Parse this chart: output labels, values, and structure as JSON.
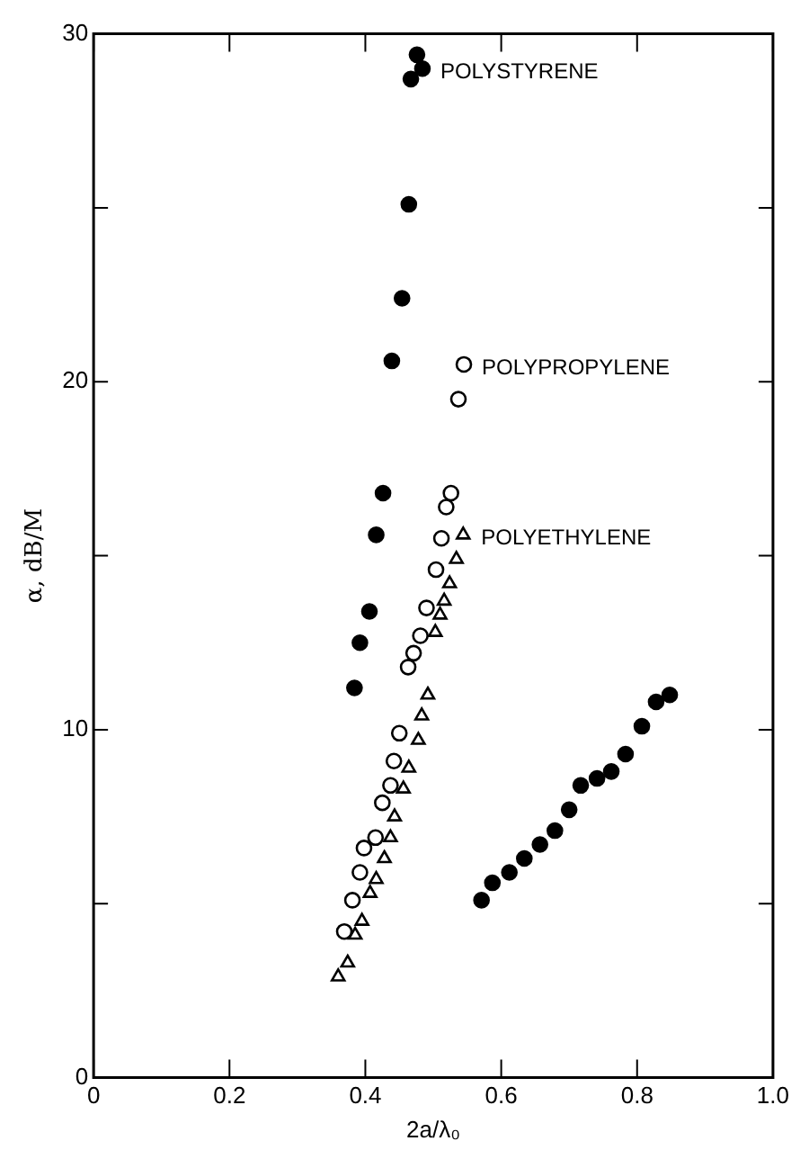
{
  "chart_data": {
    "type": "scatter",
    "xlabel": "2a/λ₀",
    "ylabel": "α, dB/M",
    "xlim": [
      0,
      1
    ],
    "ylim": [
      0,
      30
    ],
    "xticks": [
      0,
      0.2,
      0.4,
      0.6,
      0.8,
      {
        "value": 1,
        "label": "1.0"
      }
    ],
    "yticks": [
      0,
      {
        "value": 5,
        "label": null
      },
      10,
      {
        "value": 15,
        "label": null
      },
      20,
      {
        "value": 25,
        "label": null
      },
      30
    ],
    "grid": false,
    "series": [
      {
        "name": "POLYSTYRENE",
        "color": "#000000",
        "marker": "circle",
        "x": [
          0.484,
          0.476,
          0.467,
          0.464,
          0.454,
          0.439,
          0.426,
          0.416,
          0.406,
          0.392,
          0.384
        ],
        "values": [
          29.0,
          29.4,
          28.7,
          25.1,
          22.4,
          20.6,
          16.8,
          15.6,
          13.4,
          12.5,
          11.2
        ]
      },
      {
        "name": "POLYPROPYLENE",
        "color": "#ffffff",
        "marker": "circle",
        "x": [
          0.545,
          0.537,
          0.526,
          0.519,
          0.512,
          0.504,
          0.49,
          0.481,
          0.471,
          0.463,
          0.45,
          0.442,
          0.437,
          0.425,
          0.415,
          0.398,
          0.392,
          0.381,
          0.369
        ],
        "values": [
          20.5,
          19.5,
          16.8,
          16.4,
          15.5,
          14.6,
          13.5,
          12.7,
          12.2,
          11.8,
          9.9,
          9.1,
          8.4,
          7.9,
          6.9,
          6.6,
          5.9,
          5.1,
          4.2
        ]
      },
      {
        "name": "POLYETHYLENE",
        "color": "#ffffff",
        "marker": "triangle",
        "x": [
          0.544,
          0.534,
          0.524,
          0.516,
          0.51,
          0.503,
          0.492,
          0.483,
          0.478,
          0.464,
          0.456,
          0.443,
          0.437,
          0.428,
          0.416,
          0.407,
          0.395,
          0.385,
          0.374,
          0.36
        ],
        "values": [
          15.6,
          14.9,
          14.2,
          13.7,
          13.3,
          12.8,
          11.0,
          10.4,
          9.7,
          8.9,
          8.3,
          7.5,
          6.9,
          6.3,
          5.7,
          5.3,
          4.5,
          4.1,
          3.3,
          2.9
        ]
      },
      {
        "color": "#000000",
        "marker": "circle",
        "x": [
          0.571,
          0.587,
          0.612,
          0.634,
          0.657,
          0.679,
          0.7,
          0.717,
          0.741,
          0.762,
          0.783,
          0.807,
          0.828,
          0.848
        ],
        "values": [
          5.1,
          5.6,
          5.9,
          6.3,
          6.7,
          7.1,
          7.7,
          8.4,
          8.6,
          8.8,
          9.3,
          10.1,
          10.8,
          11.0
        ]
      }
    ]
  }
}
